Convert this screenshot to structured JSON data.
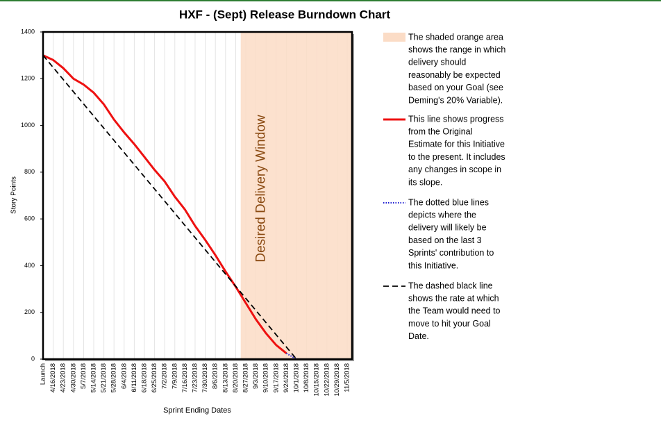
{
  "chart_data": {
    "type": "line",
    "title": "HXF -  (Sept) Release Burndown Chart",
    "ylabel": "Story Points",
    "xlabel": "Sprint Ending Dates",
    "categories": [
      "Launch",
      "4/16/2018",
      "4/23/2018",
      "4/30/2018",
      "5/7/2018",
      "5/14/2018",
      "5/21/2018",
      "5/28/2018",
      "6/4/2018",
      "6/11/2018",
      "6/18/2018",
      "6/25/2018",
      "7/2/2018",
      "7/9/2018",
      "7/16/2018",
      "7/23/2018",
      "7/30/2018",
      "8/6/2018",
      "8/13/2018",
      "8/20/2018",
      "8/27/2018",
      "9/3/2018",
      "9/10/2018",
      "9/17/2018",
      "9/24/2018",
      "10/1/2018",
      "10/8/2018",
      "10/15/2018",
      "10/22/2018",
      "10/29/2018",
      "11/5/2018"
    ],
    "ylim": [
      0,
      1400
    ],
    "yticks": [
      0,
      200,
      400,
      600,
      800,
      1000,
      1200,
      1400
    ],
    "grid": true,
    "shaded_area": {
      "from": "8/27/2018",
      "color": "#fbdcc6",
      "label": "Desired Delivery Window",
      "label_color": "#8a4a12",
      "description": [
        "The shaded orange area",
        "shows the range in which",
        "delivery should",
        "reasonably be expected",
        "based on your Goal (see",
        "Deming's 20% Variable)."
      ]
    },
    "series": [
      {
        "color": "#ee1111",
        "style": "solid",
        "values": [
          1300,
          1280,
          1245,
          1200,
          1175,
          1140,
          1090,
          1025,
          970,
          920,
          865,
          810,
          760,
          695,
          640,
          570,
          510,
          445,
          375,
          310,
          240,
          170,
          110,
          60,
          25,
          null,
          null,
          null,
          null,
          null,
          null
        ],
        "description": [
          "This line shows progress",
          "from the Original",
          "Estimate for this Initiative",
          "to the present. It includes",
          "any changes in scope in",
          "its slope."
        ]
      },
      {
        "color": "#1a1ad0",
        "style": "dotted",
        "values": [
          null,
          null,
          null,
          null,
          null,
          null,
          null,
          null,
          null,
          null,
          null,
          null,
          null,
          null,
          null,
          null,
          null,
          null,
          null,
          null,
          null,
          null,
          null,
          null,
          25,
          0,
          null,
          null,
          null,
          null,
          null
        ],
        "description": [
          "The dotted blue lines",
          "depicts where the",
          "delivery will likely be",
          "based on the last 3",
          "Sprints' contribution to",
          "this Initiative."
        ]
      },
      {
        "color": "#000000",
        "style": "dashed",
        "values": [
          1300,
          1248,
          1196,
          1144,
          1092,
          1040,
          988,
          936,
          884,
          832,
          780,
          728,
          676,
          624,
          572,
          520,
          468,
          416,
          364,
          312,
          260,
          208,
          156,
          104,
          52,
          0,
          null,
          null,
          null,
          null,
          null
        ],
        "description": [
          "The dashed black line",
          "shows the rate at which",
          "the Team would need to",
          "move to hit your Goal",
          "Date."
        ]
      }
    ]
  }
}
